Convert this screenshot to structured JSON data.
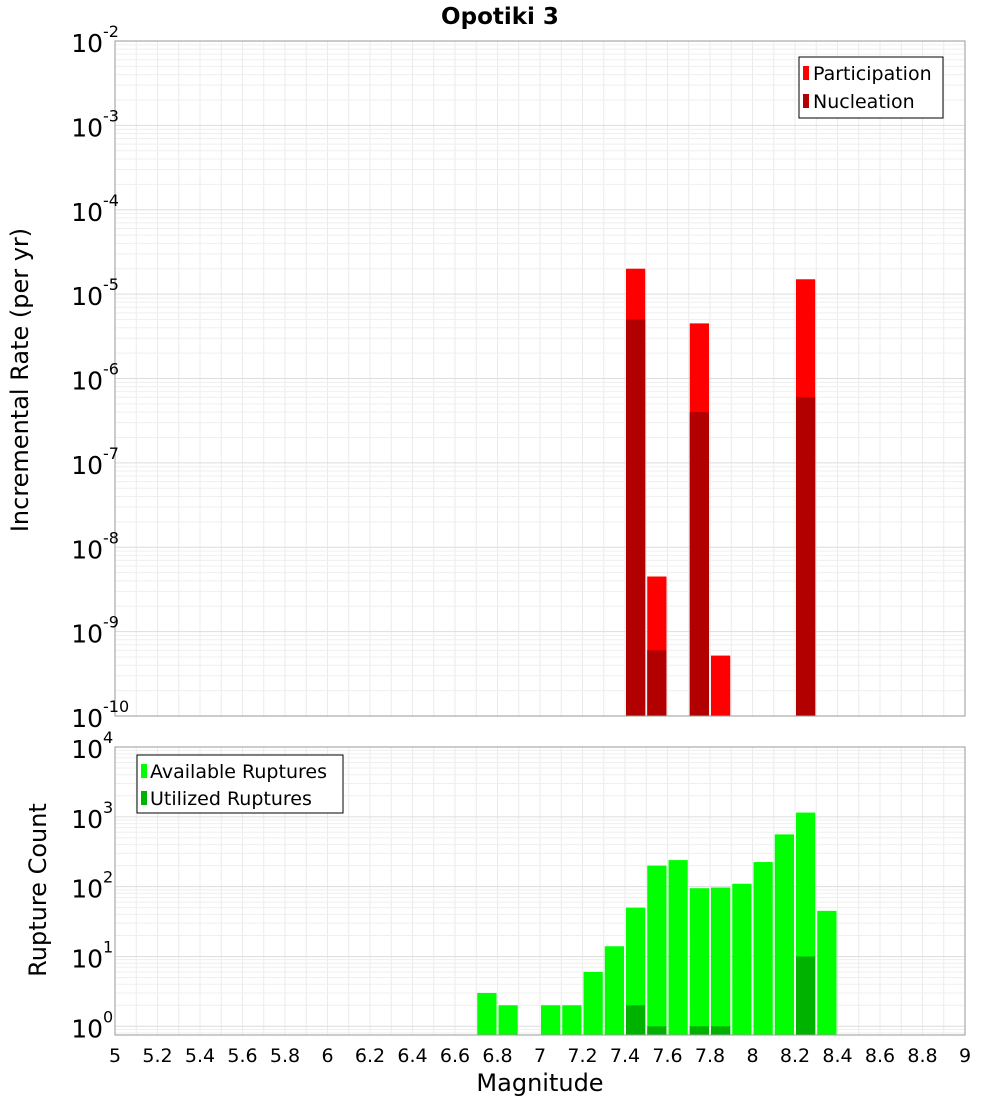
{
  "title": "Opotiki 3",
  "chart_data": [
    {
      "type": "bar",
      "scale": "log",
      "ylabel": "Incremental Rate (per yr)",
      "ylim": [
        1e-10,
        0.01
      ],
      "y_ticks": [
        {
          "base": "10",
          "exp": "-10",
          "value": 1e-10
        },
        {
          "base": "10",
          "exp": "-9",
          "value": 1e-09
        },
        {
          "base": "10",
          "exp": "-8",
          "value": 1e-08
        },
        {
          "base": "10",
          "exp": "-7",
          "value": 1e-07
        },
        {
          "base": "10",
          "exp": "-6",
          "value": 1e-06
        },
        {
          "base": "10",
          "exp": "-5",
          "value": 1e-05
        },
        {
          "base": "10",
          "exp": "-4",
          "value": 0.0001
        },
        {
          "base": "10",
          "exp": "-3",
          "value": 0.001
        },
        {
          "base": "10",
          "exp": "-2",
          "value": 0.01
        }
      ],
      "legend_position": "top-right",
      "grid": true,
      "series": [
        {
          "name": "Participation",
          "color": "#ff0000",
          "points": [
            {
              "x": 7.45,
              "y": 2e-05
            },
            {
              "x": 7.55,
              "y": 4.5e-09
            },
            {
              "x": 7.75,
              "y": 4.5e-06
            },
            {
              "x": 7.85,
              "y": 5.2e-10
            },
            {
              "x": 8.25,
              "y": 1.5e-05
            }
          ]
        },
        {
          "name": "Nucleation",
          "color": "#b20000",
          "points": [
            {
              "x": 7.45,
              "y": 5e-06
            },
            {
              "x": 7.55,
              "y": 6e-10
            },
            {
              "x": 7.75,
              "y": 4e-07
            },
            {
              "x": 8.25,
              "y": 6e-07
            }
          ]
        }
      ]
    },
    {
      "type": "bar",
      "scale": "log",
      "ylabel": "Rupture Count",
      "xlabel": "Magnitude",
      "ylim": [
        0.75,
        10000
      ],
      "xlim": [
        5,
        9
      ],
      "y_ticks": [
        {
          "base": "10",
          "exp": "0",
          "value": 1
        },
        {
          "base": "10",
          "exp": "1",
          "value": 10
        },
        {
          "base": "10",
          "exp": "2",
          "value": 100
        },
        {
          "base": "10",
          "exp": "3",
          "value": 1000
        },
        {
          "base": "10",
          "exp": "4",
          "value": 10000
        }
      ],
      "x_ticks": [
        "5",
        "5.2",
        "5.4",
        "5.6",
        "5.8",
        "6",
        "6.2",
        "6.4",
        "6.6",
        "6.8",
        "7",
        "7.2",
        "7.4",
        "7.6",
        "7.8",
        "8",
        "8.2",
        "8.4",
        "8.6",
        "8.8",
        "9"
      ],
      "legend_position": "top-left",
      "grid": true,
      "series": [
        {
          "name": "Available Ruptures",
          "color": "#00ff00",
          "points": [
            {
              "x": 6.75,
              "y": 3
            },
            {
              "x": 6.85,
              "y": 2
            },
            {
              "x": 7.05,
              "y": 2
            },
            {
              "x": 7.15,
              "y": 2
            },
            {
              "x": 7.25,
              "y": 6
            },
            {
              "x": 7.35,
              "y": 14
            },
            {
              "x": 7.45,
              "y": 50
            },
            {
              "x": 7.55,
              "y": 200
            },
            {
              "x": 7.65,
              "y": 240
            },
            {
              "x": 7.75,
              "y": 95
            },
            {
              "x": 7.85,
              "y": 97
            },
            {
              "x": 7.95,
              "y": 110
            },
            {
              "x": 8.05,
              "y": 225
            },
            {
              "x": 8.15,
              "y": 560
            },
            {
              "x": 8.25,
              "y": 1150
            },
            {
              "x": 8.35,
              "y": 45
            }
          ]
        },
        {
          "name": "Utilized Ruptures",
          "color": "#00b200",
          "points": [
            {
              "x": 7.45,
              "y": 2
            },
            {
              "x": 7.55,
              "y": 1
            },
            {
              "x": 7.75,
              "y": 1
            },
            {
              "x": 7.85,
              "y": 1
            },
            {
              "x": 8.25,
              "y": 10
            }
          ]
        }
      ]
    }
  ]
}
